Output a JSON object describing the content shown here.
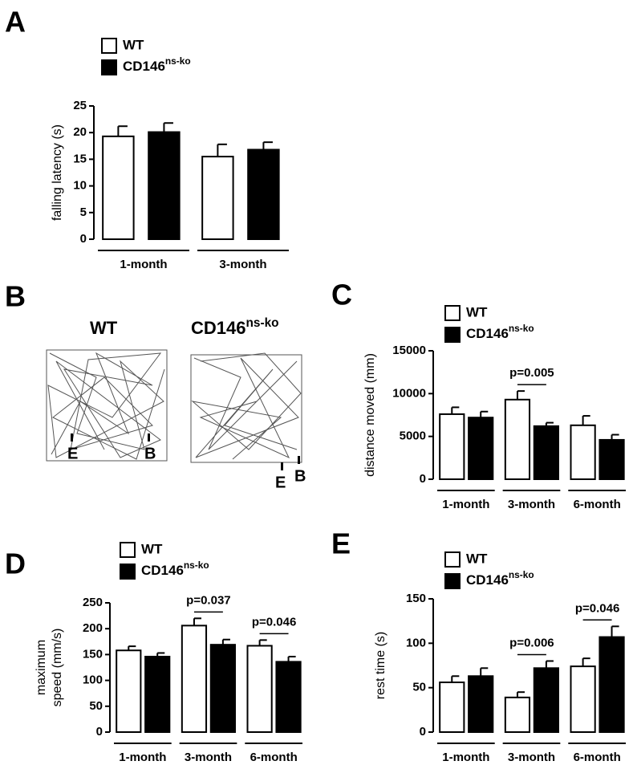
{
  "chart_data": [
    {
      "type": "bar",
      "panel": "A",
      "ylabel": "falling latency (s)",
      "categories": [
        "1-month",
        "3-month"
      ],
      "series": [
        {
          "name": "WT",
          "color": "#ffffff",
          "values": [
            19.3,
            15.5
          ],
          "errors": [
            1.9,
            2.3
          ]
        },
        {
          "name": "CD146ns-ko",
          "color": "#000000",
          "values": [
            20.1,
            16.8
          ],
          "errors": [
            1.7,
            1.4
          ]
        }
      ],
      "ylim": [
        0,
        25
      ],
      "yticks": [
        0,
        5,
        10,
        15,
        20,
        25
      ],
      "annotations": []
    },
    {
      "type": "bar",
      "panel": "C",
      "ylabel": "distance moved (mm)",
      "categories": [
        "1-month",
        "3-month",
        "6-month"
      ],
      "series": [
        {
          "name": "WT",
          "color": "#ffffff",
          "values": [
            7600,
            9300,
            6300
          ],
          "errors": [
            800,
            1000,
            1100
          ]
        },
        {
          "name": "CD146ns-ko",
          "color": "#000000",
          "values": [
            7200,
            6200,
            4600
          ],
          "errors": [
            700,
            400,
            600
          ]
        }
      ],
      "ylim": [
        0,
        15000
      ],
      "yticks": [
        0,
        5000,
        10000,
        15000
      ],
      "annotations": [
        {
          "text": "p=0.005",
          "category": 1
        }
      ]
    },
    {
      "type": "bar",
      "panel": "D",
      "ylabel": [
        "maximum",
        "speed (mm/s)"
      ],
      "categories": [
        "1-month",
        "3-month",
        "6-month"
      ],
      "series": [
        {
          "name": "WT",
          "color": "#ffffff",
          "values": [
            158,
            206,
            167
          ],
          "errors": [
            8,
            14,
            11
          ]
        },
        {
          "name": "CD146ns-ko",
          "color": "#000000",
          "values": [
            146,
            169,
            136
          ],
          "errors": [
            7,
            10,
            10
          ]
        }
      ],
      "ylim": [
        0,
        250
      ],
      "yticks": [
        0,
        50,
        100,
        150,
        200,
        250
      ],
      "annotations": [
        {
          "text": "p=0.037",
          "category": 1
        },
        {
          "text": "p=0.046",
          "category": 2
        }
      ]
    },
    {
      "type": "bar",
      "panel": "E",
      "ylabel": "rest time (s)",
      "categories": [
        "1-month",
        "3-month",
        "6-month"
      ],
      "series": [
        {
          "name": "WT",
          "color": "#ffffff",
          "values": [
            56,
            39,
            74
          ],
          "errors": [
            7,
            6,
            9
          ]
        },
        {
          "name": "CD146ns-ko",
          "color": "#000000",
          "values": [
            63,
            72,
            107
          ],
          "errors": [
            9,
            8,
            12
          ]
        }
      ],
      "ylim": [
        0,
        150
      ],
      "yticks": [
        0,
        50,
        100,
        150
      ],
      "annotations": [
        {
          "text": "p=0.006",
          "category": 1
        },
        {
          "text": "p=0.046",
          "category": 2
        }
      ]
    }
  ],
  "trajectory": {
    "panel": "B",
    "groups": [
      "WT",
      "CD146ns-ko"
    ],
    "markers": [
      "E",
      "B",
      "E",
      "B"
    ]
  }
}
